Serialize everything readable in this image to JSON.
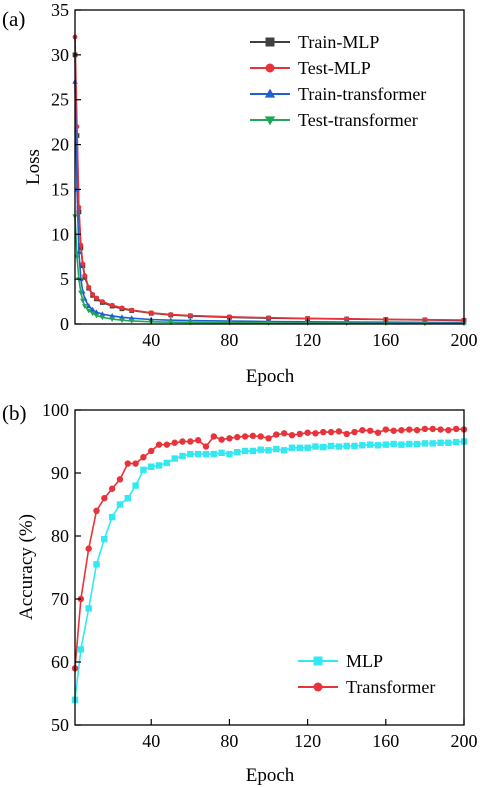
{
  "chart_data": [
    {
      "type": "line",
      "panel_label": "(a)",
      "xlabel": "Epoch",
      "ylabel": "Loss",
      "xlim": [
        1,
        200
      ],
      "ylim": [
        0,
        35
      ],
      "xticks": [
        40,
        80,
        120,
        160,
        200
      ],
      "yticks": [
        0,
        5,
        10,
        15,
        20,
        25,
        30,
        35
      ],
      "legend": "top-right",
      "series": [
        {
          "name": "Train-MLP",
          "color": "#404040",
          "marker": "square",
          "x": [
            1,
            2,
            3,
            4,
            5,
            6,
            8,
            10,
            12,
            15,
            20,
            25,
            30,
            40,
            50,
            60,
            80,
            100,
            120,
            140,
            160,
            180,
            200
          ],
          "values": [
            30,
            21,
            12.5,
            8.5,
            6.5,
            5.2,
            4.0,
            3.2,
            2.8,
            2.4,
            2.0,
            1.7,
            1.5,
            1.2,
            1.0,
            0.9,
            0.75,
            0.65,
            0.6,
            0.55,
            0.5,
            0.45,
            0.4
          ]
        },
        {
          "name": "Test-MLP",
          "color": "#e8333a",
          "marker": "circle",
          "x": [
            1,
            2,
            3,
            4,
            5,
            6,
            8,
            10,
            12,
            15,
            20,
            25,
            30,
            40,
            50,
            60,
            80,
            100,
            120,
            140,
            160,
            180,
            200
          ],
          "values": [
            32,
            22,
            13,
            8.8,
            6.7,
            5.4,
            4.1,
            3.3,
            2.9,
            2.5,
            2.1,
            1.8,
            1.55,
            1.25,
            1.05,
            0.95,
            0.8,
            0.7,
            0.62,
            0.58,
            0.52,
            0.48,
            0.45
          ]
        },
        {
          "name": "Train-transformer",
          "color": "#1f5fd0",
          "marker": "triangle-up",
          "x": [
            1,
            2,
            3,
            4,
            5,
            6,
            8,
            10,
            12,
            15,
            20,
            25,
            30,
            40,
            50,
            60,
            80,
            100,
            120,
            140,
            160,
            180,
            200
          ],
          "values": [
            27,
            15,
            8,
            5,
            3.6,
            2.8,
            2.0,
            1.6,
            1.3,
            1.1,
            0.9,
            0.75,
            0.65,
            0.5,
            0.42,
            0.38,
            0.32,
            0.28,
            0.25,
            0.22,
            0.2,
            0.18,
            0.16
          ]
        },
        {
          "name": "Test-transformer",
          "color": "#23a65a",
          "marker": "triangle-down",
          "x": [
            1,
            2,
            3,
            4,
            5,
            6,
            8,
            10,
            12,
            15,
            20,
            25,
            30,
            40,
            50,
            60,
            80,
            100,
            120,
            140,
            160,
            180,
            200
          ],
          "values": [
            12,
            7.5,
            5,
            3.5,
            2.6,
            2.0,
            1.5,
            1.2,
            0.95,
            0.75,
            0.55,
            0.42,
            0.35,
            0.25,
            0.2,
            0.17,
            0.14,
            0.12,
            0.1,
            0.09,
            0.08,
            0.07,
            0.06
          ]
        }
      ]
    },
    {
      "type": "line",
      "panel_label": "(b)",
      "xlabel": "Epoch",
      "ylabel": "Accuracy (%)",
      "xlim": [
        1,
        200
      ],
      "ylim": [
        50,
        100
      ],
      "xticks": [
        40,
        80,
        120,
        160,
        200
      ],
      "yticks": [
        50,
        60,
        70,
        80,
        90,
        100
      ],
      "legend": "bottom-right",
      "series": [
        {
          "name": "MLP",
          "color": "#33e8f0",
          "marker": "square",
          "x": [
            1,
            4,
            8,
            12,
            16,
            20,
            24,
            28,
            32,
            36,
            40,
            44,
            48,
            52,
            56,
            60,
            64,
            68,
            72,
            76,
            80,
            84,
            88,
            92,
            96,
            100,
            104,
            108,
            112,
            116,
            120,
            124,
            128,
            132,
            136,
            140,
            144,
            148,
            152,
            156,
            160,
            164,
            168,
            172,
            176,
            180,
            184,
            188,
            192,
            196,
            200
          ],
          "values": [
            54,
            62,
            68.5,
            75.5,
            79.5,
            83,
            85,
            86,
            88,
            90.5,
            91,
            91.2,
            91.6,
            92.3,
            92.7,
            93,
            93,
            93,
            93,
            93.2,
            93,
            93.3,
            93.5,
            93.5,
            93.7,
            93.6,
            93.8,
            93.6,
            94,
            94,
            94,
            94.2,
            94.1,
            94.3,
            94.2,
            94.3,
            94.3,
            94.4,
            94.5,
            94.4,
            94.5,
            94.6,
            94.5,
            94.6,
            94.6,
            94.7,
            94.7,
            94.8,
            94.8,
            94.9,
            95
          ]
        },
        {
          "name": "Transformer",
          "color": "#e8333a",
          "marker": "circle",
          "x": [
            1,
            4,
            8,
            12,
            16,
            20,
            24,
            28,
            32,
            36,
            40,
            44,
            48,
            52,
            56,
            60,
            64,
            68,
            72,
            76,
            80,
            84,
            88,
            92,
            96,
            100,
            104,
            108,
            112,
            116,
            120,
            124,
            128,
            132,
            136,
            140,
            144,
            148,
            152,
            156,
            160,
            164,
            168,
            172,
            176,
            180,
            184,
            188,
            192,
            196,
            200
          ],
          "values": [
            59,
            70,
            78,
            84,
            86,
            87.5,
            89,
            91.5,
            91.5,
            92.5,
            93.5,
            94.5,
            94.5,
            94.8,
            95,
            95,
            95.2,
            94.2,
            95.8,
            95.3,
            95.5,
            95.7,
            95.8,
            95.9,
            95.8,
            95.5,
            96.1,
            96.3,
            96,
            96.2,
            96.4,
            96.3,
            96.5,
            96.5,
            96.6,
            96.2,
            96.5,
            96.8,
            96.7,
            96.4,
            96.9,
            96.7,
            96.8,
            96.9,
            96.8,
            97,
            97,
            96.9,
            96.8,
            97,
            96.9
          ]
        }
      ]
    }
  ]
}
